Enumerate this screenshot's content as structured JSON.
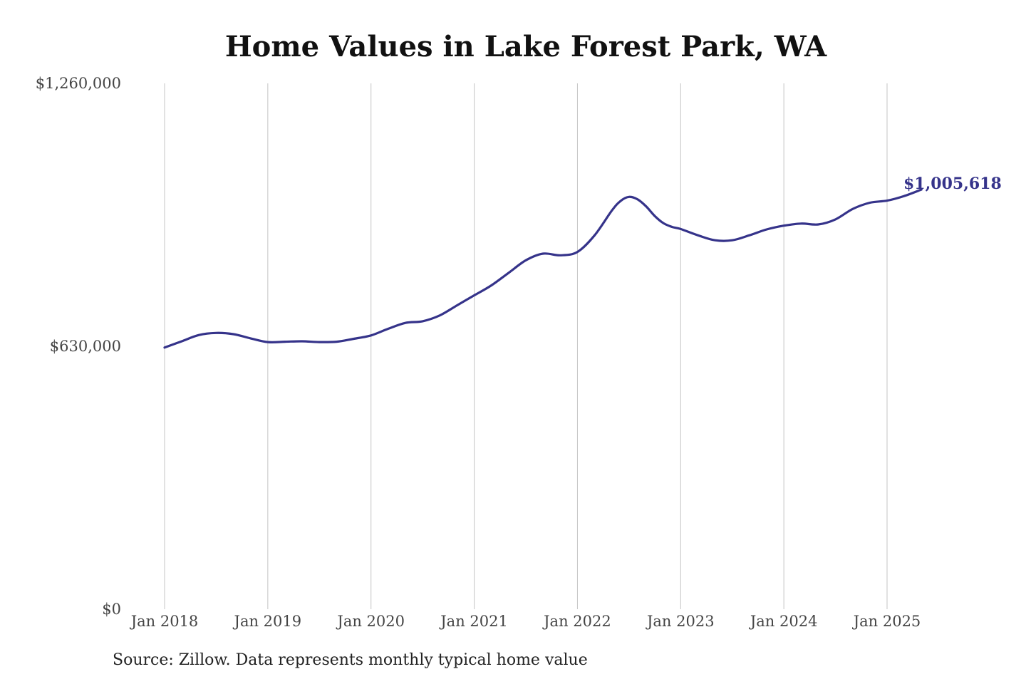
{
  "chart_data": {
    "type": "line",
    "title": "Home Values in Lake Forest Park, WA",
    "source": "Source: Zillow. Data represents monthly typical home value",
    "xlabel": "",
    "ylabel": "",
    "x_ticks": [
      "Jan 2018",
      "Jan 2019",
      "Jan 2020",
      "Jan 2021",
      "Jan 2022",
      "Jan 2023",
      "Jan 2024",
      "Jan 2025"
    ],
    "y_ticks": [
      {
        "value": 0,
        "label": "$0"
      },
      {
        "value": 630000,
        "label": "$630,000"
      },
      {
        "value": 1260000,
        "label": "$1,260,000"
      }
    ],
    "ylim": [
      0,
      1260000
    ],
    "xlim": [
      "2018-01",
      "2025-01"
    ],
    "grid": "vertical",
    "line_color": "#35338a",
    "end_label": "$1,005,618",
    "series": [
      {
        "points": [
          [
            "2018-01",
            627000
          ],
          [
            "2018-03",
            642000
          ],
          [
            "2018-05",
            657000
          ],
          [
            "2018-07",
            662000
          ],
          [
            "2018-09",
            659000
          ],
          [
            "2018-11",
            649000
          ],
          [
            "2019-01",
            640000
          ],
          [
            "2019-03",
            641000
          ],
          [
            "2019-05",
            642000
          ],
          [
            "2019-07",
            640000
          ],
          [
            "2019-09",
            641000
          ],
          [
            "2019-11",
            648000
          ],
          [
            "2020-01",
            656000
          ],
          [
            "2020-03",
            672000
          ],
          [
            "2020-05",
            686000
          ],
          [
            "2020-07",
            690000
          ],
          [
            "2020-09",
            704000
          ],
          [
            "2020-11",
            728000
          ],
          [
            "2021-01",
            752000
          ],
          [
            "2021-03",
            776000
          ],
          [
            "2021-05",
            806000
          ],
          [
            "2021-07",
            836000
          ],
          [
            "2021-09",
            852000
          ],
          [
            "2021-11",
            848000
          ],
          [
            "2022-01",
            856000
          ],
          [
            "2022-03",
            896000
          ],
          [
            "2022-05",
            955000
          ],
          [
            "2022-06",
            978000
          ],
          [
            "2022-07",
            988000
          ],
          [
            "2022-08",
            982000
          ],
          [
            "2022-09",
            965000
          ],
          [
            "2022-10",
            942000
          ],
          [
            "2022-11",
            925000
          ],
          [
            "2022-12",
            916000
          ],
          [
            "2023-01",
            911000
          ],
          [
            "2023-03",
            896000
          ],
          [
            "2023-05",
            884000
          ],
          [
            "2023-07",
            884000
          ],
          [
            "2023-09",
            896000
          ],
          [
            "2023-11",
            910000
          ],
          [
            "2024-01",
            919000
          ],
          [
            "2024-03",
            924000
          ],
          [
            "2024-05",
            922000
          ],
          [
            "2024-07",
            934000
          ],
          [
            "2024-09",
            959000
          ],
          [
            "2024-11",
            974000
          ],
          [
            "2025-01",
            979000
          ],
          [
            "2025-03",
            990000
          ],
          [
            "2025-05",
            1005618
          ]
        ]
      }
    ]
  }
}
